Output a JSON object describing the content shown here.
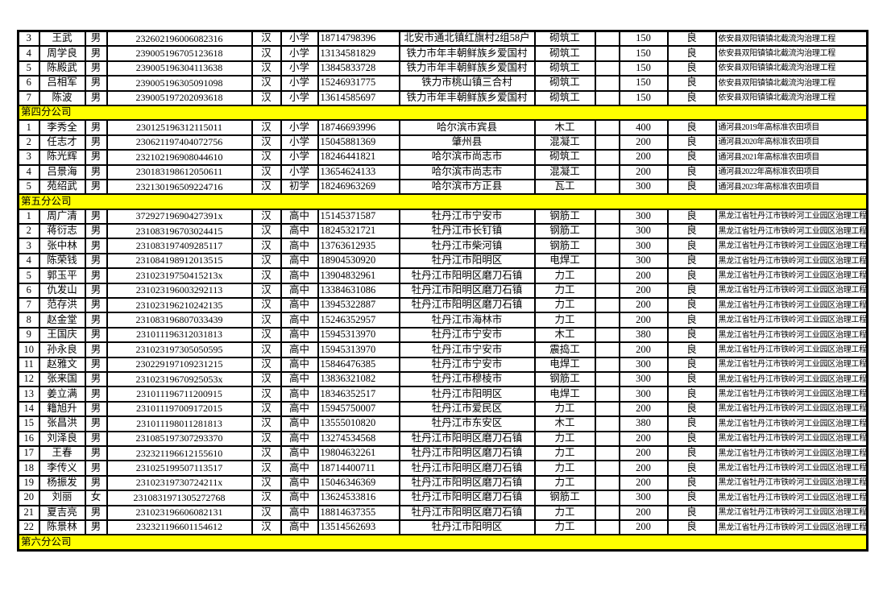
{
  "table": {
    "colors": {
      "section_background": "#ffff00",
      "border": "#000000",
      "text": "#000000",
      "page_background": "#ffffff"
    },
    "columns": [
      "row-number",
      "worker-name",
      "gender",
      "id-number",
      "ethnicity",
      "education",
      "phone",
      "address",
      "job-type",
      "blank",
      "daily-wage",
      "rating",
      "project-name"
    ],
    "sections": [
      {
        "header": null,
        "rows": [
          [
            "3",
            "王武",
            "男",
            "232602196006082316",
            "汉",
            "小学",
            "18714798396",
            "北安市通北镇红旗村2组58户",
            "砌筑工",
            "",
            "150",
            "良",
            "依安县双阳镇镇北截流沟治理工程"
          ],
          [
            "4",
            "周学良",
            "男",
            "239005196705123618",
            "汉",
            "小学",
            "13134581829",
            "铁力市年丰朝鲜族乡爱国村",
            "砌筑工",
            "",
            "150",
            "良",
            "依安县双阳镇镇北截流沟治理工程"
          ],
          [
            "5",
            "陈殿武",
            "男",
            "239005196304113638",
            "汉",
            "小学",
            "13845833728",
            "铁力市年丰朝鲜族乡爱国村",
            "砌筑工",
            "",
            "150",
            "良",
            "依安县双阳镇镇北截流沟治理工程"
          ],
          [
            "6",
            "吕相军",
            "男",
            "239005196305091098",
            "汉",
            "小学",
            "15246931775",
            "铁力市桃山镇三合村",
            "砌筑工",
            "",
            "150",
            "良",
            "依安县双阳镇镇北截流沟治理工程"
          ],
          [
            "7",
            "陈波",
            "男",
            "239005197202093618",
            "汉",
            "小学",
            "13614585697",
            "铁力市年丰朝鲜族乡爱国村",
            "砌筑工",
            "",
            "150",
            "良",
            "依安县双阳镇镇北截流沟治理工程"
          ]
        ]
      },
      {
        "header": "第四分公司",
        "rows": [
          [
            "1",
            "李秀全",
            "男",
            "230125196312115011",
            "汉",
            "小学",
            "18746693996",
            "哈尔滨市宾县",
            "木工",
            "",
            "400",
            "良",
            "通河县2019年高标准农田项目"
          ],
          [
            "2",
            "任志才",
            "男",
            "230621197404072756",
            "汉",
            "小学",
            "15045881369",
            "肇州县",
            "混凝工",
            "",
            "200",
            "良",
            "通河县2020年高标准农田项目"
          ],
          [
            "3",
            "陈光辉",
            "男",
            "232102196908044610",
            "汉",
            "小学",
            "18246441821",
            "哈尔滨市尚志市",
            "砌筑工",
            "",
            "200",
            "良",
            "通河县2021年高标准农田项目"
          ],
          [
            "4",
            "吕景海",
            "男",
            "230183198612050611",
            "汉",
            "小学",
            "13654624133",
            "哈尔滨市尚志市",
            "混凝工",
            "",
            "200",
            "良",
            "通河县2022年高标准农田项目"
          ],
          [
            "5",
            "苑绍武",
            "男",
            "232130196509224716",
            "汉",
            "初学",
            "18246963269",
            "哈尔滨市方正县",
            "瓦工",
            "",
            "300",
            "良",
            "通河县2023年高标准农田项目"
          ]
        ]
      },
      {
        "header": "第五分公司",
        "rows": [
          [
            "1",
            "周广清",
            "男",
            "37292719690427391x",
            "汉",
            "高中",
            "15145371587",
            "牡丹江市宁安市",
            "钢筋工",
            "",
            "300",
            "良",
            "黑龙江省牡丹江市铁岭河工业园区治理工程"
          ],
          [
            "2",
            "蒋衍志",
            "男",
            "231083196703024415",
            "汉",
            "高中",
            "18245321721",
            "牡丹江市长钉镇",
            "钢筋工",
            "",
            "300",
            "良",
            "黑龙江省牡丹江市铁岭河工业园区治理工程"
          ],
          [
            "3",
            "张中林",
            "男",
            "231083197409285117",
            "汉",
            "高中",
            "13763612935",
            "牡丹江市柴河镇",
            "钢筋工",
            "",
            "300",
            "良",
            "黑龙江省牡丹江市铁岭河工业园区治理工程"
          ],
          [
            "4",
            "陈荣钱",
            "男",
            "231084198912013515",
            "汉",
            "高中",
            "18904530920",
            "牡丹江市阳明区",
            "电焊工",
            "",
            "300",
            "良",
            "黑龙江省牡丹江市铁岭河工业园区治理工程"
          ],
          [
            "5",
            "郭玉平",
            "男",
            "23102319750415213x",
            "汉",
            "高中",
            "13904832961",
            "牡丹江市阳明区磨刀石镇",
            "力工",
            "",
            "200",
            "良",
            "黑龙江省牡丹江市铁岭河工业园区治理工程"
          ],
          [
            "6",
            "仇发山",
            "男",
            "231023196003292113",
            "汉",
            "高中",
            "13384631086",
            "牡丹江市阳明区磨刀石镇",
            "力工",
            "",
            "200",
            "良",
            "黑龙江省牡丹江市铁岭河工业园区治理工程"
          ],
          [
            "7",
            "范存洪",
            "男",
            "231023196210242135",
            "汉",
            "高中",
            "13945322887",
            "牡丹江市阳明区磨刀石镇",
            "力工",
            "",
            "200",
            "良",
            "黑龙江省牡丹江市铁岭河工业园区治理工程"
          ],
          [
            "8",
            "赵金堂",
            "男",
            "231083196807033439",
            "汉",
            "高中",
            "15246352957",
            "牡丹江市海林市",
            "力工",
            "",
            "200",
            "良",
            "黑龙江省牡丹江市铁岭河工业园区治理工程"
          ],
          [
            "9",
            "王国庆",
            "男",
            "231011196312031813",
            "汉",
            "高中",
            "15945313970",
            "牡丹江市宁安市",
            "木工",
            "",
            "380",
            "良",
            "黑龙江省牡丹江市铁岭河工业园区治理工程"
          ],
          [
            "10",
            "孙永良",
            "男",
            "231023197305050595",
            "汉",
            "高中",
            "15945313970",
            "牡丹江市宁安市",
            "震捣工",
            "",
            "200",
            "良",
            "黑龙江省牡丹江市铁岭河工业园区治理工程"
          ],
          [
            "11",
            "赵雅文",
            "男",
            "230229197109231215",
            "汉",
            "高中",
            "15846476385",
            "牡丹江市宁安市",
            "电焊工",
            "",
            "300",
            "良",
            "黑龙江省牡丹江市铁岭河工业园区治理工程"
          ],
          [
            "12",
            "张来国",
            "男",
            "23102319670925053x",
            "汉",
            "高中",
            "13836321082",
            "牡丹江市穆棱市",
            "钢筋工",
            "",
            "300",
            "良",
            "黑龙江省牡丹江市铁岭河工业园区治理工程"
          ],
          [
            "13",
            "姜立满",
            "男",
            "231011196711200915",
            "汉",
            "高中",
            "18346352517",
            "牡丹江市阳明区",
            "电焊工",
            "",
            "300",
            "良",
            "黑龙江省牡丹江市铁岭河工业园区治理工程"
          ],
          [
            "14",
            "籍旭升",
            "男",
            "231011197009172015",
            "汉",
            "高中",
            "15945750007",
            "牡丹江市爱民区",
            "力工",
            "",
            "200",
            "良",
            "黑龙江省牡丹江市铁岭河工业园区治理工程"
          ],
          [
            "15",
            "张昌洪",
            "男",
            "231011198011281813",
            "汉",
            "高中",
            "13555010820",
            "牡丹江市东安区",
            "木工",
            "",
            "380",
            "良",
            "黑龙江省牡丹江市铁岭河工业园区治理工程"
          ],
          [
            "16",
            "刘泽良",
            "男",
            "231085197307293370",
            "汉",
            "高中",
            "13274534568",
            "牡丹江市阳明区磨刀石镇",
            "力工",
            "",
            "200",
            "良",
            "黑龙江省牡丹江市铁岭河工业园区治理工程"
          ],
          [
            "17",
            "王春",
            "男",
            "232321196612155610",
            "汉",
            "高中",
            "19804632261",
            "牡丹江市阳明区磨刀石镇",
            "力工",
            "",
            "200",
            "良",
            "黑龙江省牡丹江市铁岭河工业园区治理工程"
          ],
          [
            "18",
            "李传义",
            "男",
            "231025199507113517",
            "汉",
            "高中",
            "18714400711",
            "牡丹江市阳明区磨刀石镇",
            "力工",
            "",
            "200",
            "良",
            "黑龙江省牡丹江市铁岭河工业园区治理工程"
          ],
          [
            "19",
            "杨振发",
            "男",
            "23102319730724211x",
            "汉",
            "高中",
            "15046346369",
            "牡丹江市阳明区磨刀石镇",
            "力工",
            "",
            "200",
            "良",
            "黑龙江省牡丹江市铁岭河工业园区治理工程"
          ],
          [
            "20",
            "刘丽",
            "女",
            "2310831971305272768",
            "汉",
            "高中",
            "13624533816",
            "牡丹江市阳明区磨刀石镇",
            "钢筋工",
            "",
            "300",
            "良",
            "黑龙江省牡丹江市铁岭河工业园区治理工程"
          ],
          [
            "21",
            "夏吉亮",
            "男",
            "231023196606082131",
            "汉",
            "高中",
            "18814637355",
            "牡丹江市阳明区磨刀石镇",
            "力工",
            "",
            "200",
            "良",
            "黑龙江省牡丹江市铁岭河工业园区治理工程"
          ],
          [
            "22",
            "陈景林",
            "男",
            "232321196601154612",
            "汉",
            "高中",
            "13514562693",
            "牡丹江市阳明区",
            "力工",
            "",
            "200",
            "良",
            "黑龙江省牡丹江市铁岭河工业园区治理工程"
          ]
        ]
      },
      {
        "header": "第六分公司",
        "rows": []
      }
    ]
  }
}
